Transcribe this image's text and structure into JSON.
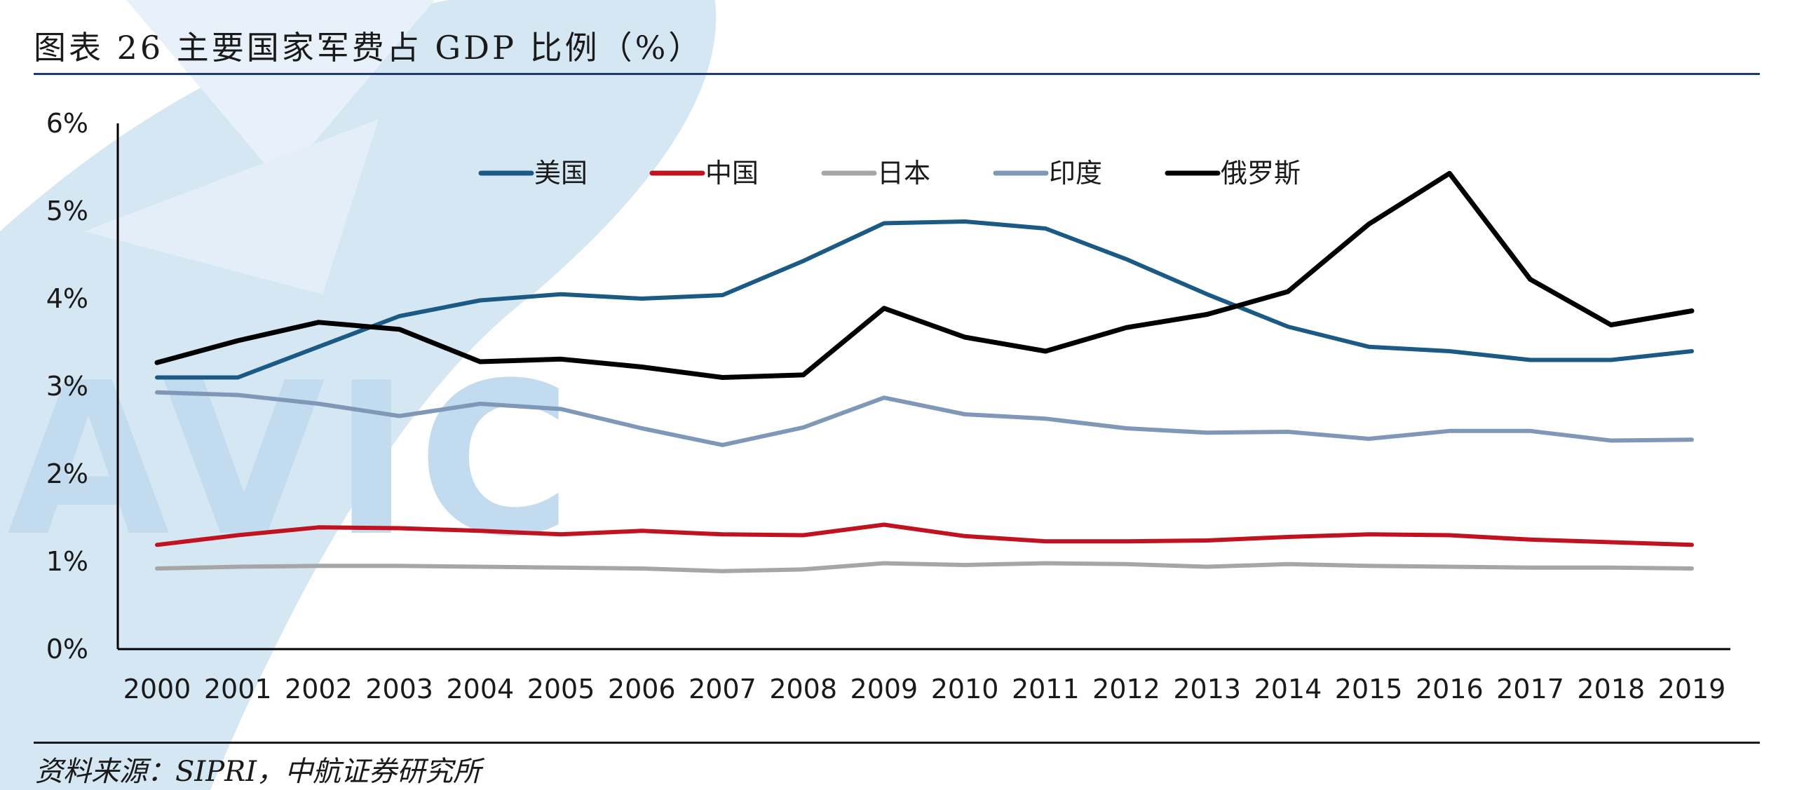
{
  "header": {
    "title": "图表 26 主要国家军费占 GDP 比例（%）"
  },
  "footer": {
    "source": "资料来源：SIPRI，中航证券研究所"
  },
  "watermark": {
    "text": "AVIC",
    "color": "#cfe3f2"
  },
  "chart_data": {
    "type": "line",
    "title": "",
    "xlabel": "",
    "ylabel": "",
    "x": [
      "2000",
      "2001",
      "2002",
      "2003",
      "2004",
      "2005",
      "2006",
      "2007",
      "2008",
      "2009",
      "2010",
      "2011",
      "2012",
      "2013",
      "2014",
      "2015",
      "2016",
      "2017",
      "2018",
      "2019"
    ],
    "ylim": [
      0,
      6
    ],
    "y_ticks": [
      0,
      1,
      2,
      3,
      4,
      5,
      6
    ],
    "y_tick_labels": [
      "0%",
      "1%",
      "2%",
      "3%",
      "4%",
      "5%",
      "6%"
    ],
    "grid": false,
    "legend_position": "top-center",
    "series": [
      {
        "name": "美国",
        "color": "#1a5a85",
        "values": [
          3.1,
          3.1,
          3.45,
          3.8,
          3.98,
          4.05,
          4.0,
          4.04,
          4.43,
          4.86,
          4.88,
          4.8,
          4.45,
          4.05,
          3.68,
          3.45,
          3.4,
          3.3,
          3.3,
          3.4
        ]
      },
      {
        "name": "中国",
        "color": "#c0121f",
        "values": [
          1.19,
          1.3,
          1.39,
          1.38,
          1.35,
          1.31,
          1.35,
          1.31,
          1.3,
          1.42,
          1.29,
          1.23,
          1.23,
          1.24,
          1.28,
          1.31,
          1.3,
          1.25,
          1.22,
          1.19
        ]
      },
      {
        "name": "日本",
        "color": "#a6a6a6",
        "values": [
          0.92,
          0.94,
          0.95,
          0.95,
          0.94,
          0.93,
          0.92,
          0.89,
          0.91,
          0.98,
          0.96,
          0.98,
          0.97,
          0.94,
          0.97,
          0.95,
          0.94,
          0.93,
          0.93,
          0.92
        ]
      },
      {
        "name": "印度",
        "color": "#7f98b8",
        "values": [
          2.93,
          2.9,
          2.8,
          2.66,
          2.8,
          2.74,
          2.52,
          2.33,
          2.53,
          2.87,
          2.68,
          2.63,
          2.52,
          2.47,
          2.48,
          2.4,
          2.49,
          2.49,
          2.38,
          2.39
        ]
      },
      {
        "name": "俄罗斯",
        "color": "#000000",
        "values": [
          3.27,
          3.52,
          3.73,
          3.65,
          3.28,
          3.31,
          3.22,
          3.1,
          3.13,
          3.89,
          3.56,
          3.4,
          3.67,
          3.82,
          4.08,
          4.85,
          5.43,
          4.22,
          3.7,
          3.86
        ]
      }
    ]
  }
}
